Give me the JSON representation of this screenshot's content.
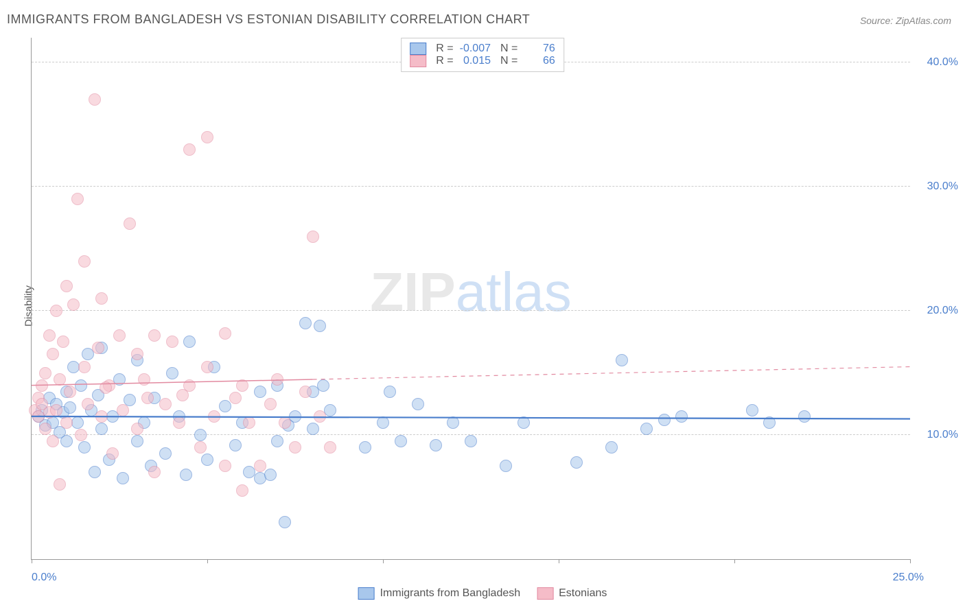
{
  "title": "IMMIGRANTS FROM BANGLADESH VS ESTONIAN DISABILITY CORRELATION CHART",
  "source": "Source: ZipAtlas.com",
  "watermark_zip": "ZIP",
  "watermark_atlas": "atlas",
  "ylabel": "Disability",
  "chart": {
    "type": "scatter",
    "xlim": [
      0,
      25
    ],
    "ylim": [
      0,
      42
    ],
    "x_ticks": [
      0,
      5,
      10,
      15,
      20,
      25
    ],
    "x_tick_labels": [
      "0.0%",
      "",
      "",
      "",
      "",
      "25.0%"
    ],
    "y_gridlines": [
      10,
      20,
      30,
      40
    ],
    "y_tick_labels": [
      "10.0%",
      "20.0%",
      "30.0%",
      "40.0%"
    ],
    "background_color": "#ffffff",
    "grid_color": "#cccccc",
    "axis_color": "#999999",
    "tick_label_color": "#4a7ecc",
    "marker_radius": 8,
    "marker_border_width": 1.2,
    "series": [
      {
        "name": "Immigrants from Bangladesh",
        "fill": "#a8c7ec",
        "fill_opacity": 0.55,
        "stroke": "#4a7ecc",
        "r": -0.007,
        "n": 76,
        "regression": {
          "y_at_xmin": 11.5,
          "y_at_xmax": 11.3,
          "x_solid_until": 25,
          "dash": "0",
          "width": 2.2
        },
        "points": [
          [
            0.2,
            11.5
          ],
          [
            0.3,
            12.0
          ],
          [
            0.4,
            10.8
          ],
          [
            0.5,
            13.0
          ],
          [
            0.6,
            11.0
          ],
          [
            0.7,
            12.5
          ],
          [
            0.8,
            10.2
          ],
          [
            0.9,
            11.8
          ],
          [
            1.0,
            9.5
          ],
          [
            1.0,
            13.5
          ],
          [
            1.1,
            12.2
          ],
          [
            1.2,
            15.5
          ],
          [
            1.3,
            11.0
          ],
          [
            1.4,
            14.0
          ],
          [
            1.5,
            9.0
          ],
          [
            1.6,
            16.5
          ],
          [
            1.7,
            12.0
          ],
          [
            1.8,
            7.0
          ],
          [
            1.9,
            13.2
          ],
          [
            2.0,
            10.5
          ],
          [
            2.0,
            17.0
          ],
          [
            2.2,
            8.0
          ],
          [
            2.3,
            11.5
          ],
          [
            2.5,
            14.5
          ],
          [
            2.6,
            6.5
          ],
          [
            2.8,
            12.8
          ],
          [
            3.0,
            9.5
          ],
          [
            3.0,
            16.0
          ],
          [
            3.2,
            11.0
          ],
          [
            3.4,
            7.5
          ],
          [
            3.5,
            13.0
          ],
          [
            3.8,
            8.5
          ],
          [
            4.0,
            15.0
          ],
          [
            4.2,
            11.5
          ],
          [
            4.4,
            6.8
          ],
          [
            4.5,
            17.5
          ],
          [
            4.8,
            10.0
          ],
          [
            5.0,
            8.0
          ],
          [
            5.2,
            15.5
          ],
          [
            5.5,
            12.3
          ],
          [
            5.8,
            9.2
          ],
          [
            6.0,
            11.0
          ],
          [
            6.2,
            7.0
          ],
          [
            6.5,
            13.5
          ],
          [
            6.5,
            6.5
          ],
          [
            6.8,
            6.8
          ],
          [
            7.0,
            9.5
          ],
          [
            7.0,
            14.0
          ],
          [
            7.2,
            3.0
          ],
          [
            7.3,
            10.8
          ],
          [
            7.5,
            11.5
          ],
          [
            7.8,
            19.0
          ],
          [
            8.0,
            13.5
          ],
          [
            8.0,
            10.5
          ],
          [
            8.2,
            18.8
          ],
          [
            8.3,
            14.0
          ],
          [
            8.5,
            12.0
          ],
          [
            9.5,
            9.0
          ],
          [
            10.0,
            11.0
          ],
          [
            10.2,
            13.5
          ],
          [
            10.5,
            9.5
          ],
          [
            11.0,
            12.5
          ],
          [
            11.5,
            9.2
          ],
          [
            12.0,
            11.0
          ],
          [
            12.5,
            9.5
          ],
          [
            13.5,
            7.5
          ],
          [
            14.0,
            11.0
          ],
          [
            16.5,
            9.0
          ],
          [
            16.8,
            16.0
          ],
          [
            17.5,
            10.5
          ],
          [
            18.0,
            11.2
          ],
          [
            18.5,
            11.5
          ],
          [
            20.5,
            12.0
          ],
          [
            21.0,
            11.0
          ],
          [
            22.0,
            11.5
          ],
          [
            15.5,
            7.8
          ]
        ]
      },
      {
        "name": "Estonians",
        "fill": "#f5bcc8",
        "fill_opacity": 0.55,
        "stroke": "#e28aa0",
        "r": 0.015,
        "n": 66,
        "regression": {
          "y_at_xmin": 14.0,
          "y_at_xmax": 15.5,
          "x_solid_until": 8,
          "dash": "6,6",
          "width": 1.5
        },
        "points": [
          [
            0.1,
            12.0
          ],
          [
            0.2,
            11.5
          ],
          [
            0.2,
            13.0
          ],
          [
            0.3,
            12.5
          ],
          [
            0.3,
            14.0
          ],
          [
            0.4,
            10.5
          ],
          [
            0.4,
            15.0
          ],
          [
            0.5,
            11.8
          ],
          [
            0.5,
            18.0
          ],
          [
            0.6,
            16.5
          ],
          [
            0.6,
            9.5
          ],
          [
            0.7,
            12.0
          ],
          [
            0.7,
            20.0
          ],
          [
            0.8,
            14.5
          ],
          [
            0.8,
            6.0
          ],
          [
            0.9,
            17.5
          ],
          [
            1.0,
            11.0
          ],
          [
            1.0,
            22.0
          ],
          [
            1.1,
            13.5
          ],
          [
            1.2,
            20.5
          ],
          [
            1.3,
            29.0
          ],
          [
            1.4,
            10.0
          ],
          [
            1.5,
            15.5
          ],
          [
            1.5,
            24.0
          ],
          [
            1.6,
            12.5
          ],
          [
            1.8,
            37.0
          ],
          [
            1.9,
            17.0
          ],
          [
            2.0,
            11.5
          ],
          [
            2.0,
            21.0
          ],
          [
            2.2,
            14.0
          ],
          [
            2.3,
            8.5
          ],
          [
            2.5,
            18.0
          ],
          [
            2.6,
            12.0
          ],
          [
            2.8,
            27.0
          ],
          [
            3.0,
            16.5
          ],
          [
            3.0,
            10.5
          ],
          [
            3.2,
            14.5
          ],
          [
            3.5,
            18.0
          ],
          [
            3.5,
            7.0
          ],
          [
            3.8,
            12.5
          ],
          [
            4.0,
            17.5
          ],
          [
            4.2,
            11.0
          ],
          [
            4.5,
            33.0
          ],
          [
            4.5,
            14.0
          ],
          [
            4.8,
            9.0
          ],
          [
            5.0,
            34.0
          ],
          [
            5.0,
            15.5
          ],
          [
            5.2,
            11.5
          ],
          [
            5.5,
            18.2
          ],
          [
            5.5,
            7.5
          ],
          [
            5.8,
            13.0
          ],
          [
            6.0,
            5.5
          ],
          [
            6.0,
            14.0
          ],
          [
            6.2,
            11.0
          ],
          [
            6.5,
            7.5
          ],
          [
            6.8,
            12.5
          ],
          [
            7.0,
            14.5
          ],
          [
            7.2,
            11.0
          ],
          [
            7.5,
            9.0
          ],
          [
            7.8,
            13.5
          ],
          [
            8.0,
            26.0
          ],
          [
            8.2,
            11.5
          ],
          [
            8.5,
            9.0
          ],
          [
            3.3,
            13.0
          ],
          [
            4.3,
            13.2
          ],
          [
            2.1,
            13.8
          ]
        ]
      }
    ]
  },
  "legend_top": {
    "r_label": "R =",
    "n_label": "N ="
  },
  "legend_bottom": {
    "series1": "Immigrants from Bangladesh",
    "series2": "Estonians"
  }
}
